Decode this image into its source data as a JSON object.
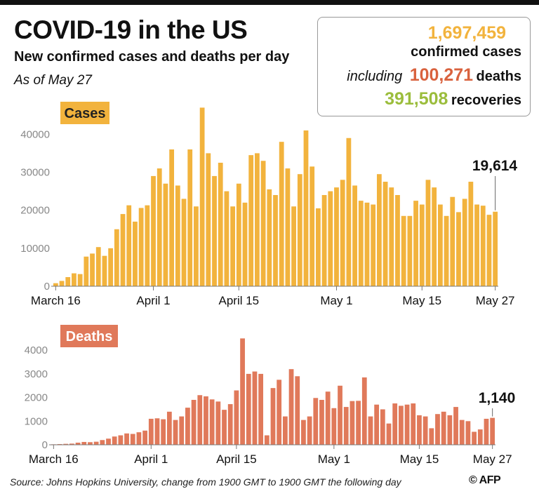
{
  "header": {
    "title": "COVID-19 in the US",
    "subtitle": "New confirmed cases and deaths per day",
    "as_of": "As of May 27"
  },
  "stats": {
    "cases_value": "1,697,459",
    "cases_label": "confirmed cases",
    "including": "including",
    "deaths_value": "100,271",
    "deaths_label": "deaths",
    "recoveries_value": "391,508",
    "recoveries_label": "recoveries"
  },
  "colors": {
    "cases": "#f2b33d",
    "deaths": "#e0795a",
    "recoveries": "#9bbd3c",
    "axis": "#777777"
  },
  "chart_data": [
    {
      "type": "bar",
      "name": "Cases",
      "x": [
        "March 16",
        "March 17",
        "March 18",
        "March 19",
        "March 20",
        "March 21",
        "March 22",
        "March 23",
        "March 24",
        "March 25",
        "March 26",
        "March 27",
        "March 28",
        "March 29",
        "March 30",
        "March 31",
        "April 1",
        "April 2",
        "April 3",
        "April 4",
        "April 5",
        "April 6",
        "April 7",
        "April 8",
        "April 9",
        "April 10",
        "April 11",
        "April 12",
        "April 13",
        "April 14",
        "April 15",
        "April 16",
        "April 17",
        "April 18",
        "April 19",
        "April 20",
        "April 21",
        "April 22",
        "April 23",
        "April 24",
        "April 25",
        "April 26",
        "April 27",
        "April 28",
        "April 29",
        "April 30",
        "May 1",
        "May 2",
        "May 3",
        "May 4",
        "May 5",
        "May 6",
        "May 7",
        "May 8",
        "May 9",
        "May 10",
        "May 11",
        "May 12",
        "May 13",
        "May 14",
        "May 15",
        "May 16",
        "May 17",
        "May 18",
        "May 19",
        "May 20",
        "May 21",
        "May 22",
        "May 23",
        "May 24",
        "May 25",
        "May 26",
        "May 27"
      ],
      "values": [
        800,
        1400,
        2400,
        3400,
        3200,
        7800,
        8600,
        10300,
        8000,
        10000,
        15000,
        19000,
        21300,
        17000,
        20600,
        21300,
        29000,
        31000,
        27000,
        36000,
        26500,
        23000,
        36000,
        21000,
        47000,
        35000,
        29000,
        32500,
        25000,
        21000,
        27000,
        22000,
        34500,
        35000,
        33000,
        25500,
        24000,
        38000,
        31000,
        21000,
        29500,
        41000,
        31500,
        20500,
        24000,
        25000,
        26000,
        28000,
        39000,
        26500,
        22500,
        22000,
        21500,
        29500,
        27500,
        26000,
        24000,
        18500,
        18500,
        22500,
        21500,
        28000,
        26000,
        21500,
        18500,
        23500,
        19500,
        23000,
        27500,
        21500,
        21200,
        18800,
        19614
      ],
      "ylim": [
        0,
        48000
      ],
      "yticks": [
        "0",
        "10000",
        "20000",
        "30000",
        "40000"
      ],
      "xticks": [
        "March 16",
        "April 1",
        "April 15",
        "May 1",
        "May 15",
        "May 27"
      ],
      "annotation": "19,614"
    },
    {
      "type": "bar",
      "name": "Deaths",
      "x": [
        "March 16",
        "March 17",
        "March 18",
        "March 19",
        "March 20",
        "March 21",
        "March 22",
        "March 23",
        "March 24",
        "March 25",
        "March 26",
        "March 27",
        "March 28",
        "March 29",
        "March 30",
        "March 31",
        "April 1",
        "April 2",
        "April 3",
        "April 4",
        "April 5",
        "April 6",
        "April 7",
        "April 8",
        "April 9",
        "April 10",
        "April 11",
        "April 12",
        "April 13",
        "April 14",
        "April 15",
        "April 16",
        "April 17",
        "April 18",
        "April 19",
        "April 20",
        "April 21",
        "April 22",
        "April 23",
        "April 24",
        "April 25",
        "April 26",
        "April 27",
        "April 28",
        "April 29",
        "April 30",
        "May 1",
        "May 2",
        "May 3",
        "May 4",
        "May 5",
        "May 6",
        "May 7",
        "May 8",
        "May 9",
        "May 10",
        "May 11",
        "May 12",
        "May 13",
        "May 14",
        "May 15",
        "May 16",
        "May 17",
        "May 18",
        "May 19",
        "May 20",
        "May 21",
        "May 22",
        "May 23",
        "May 24",
        "May 25",
        "May 26",
        "May 27"
      ],
      "values": [
        20,
        30,
        40,
        50,
        90,
        120,
        110,
        130,
        200,
        260,
        350,
        400,
        480,
        460,
        530,
        600,
        1100,
        1120,
        1080,
        1400,
        1050,
        1200,
        1570,
        1900,
        2100,
        2050,
        1920,
        1830,
        1480,
        1720,
        2300,
        4500,
        3000,
        3100,
        3000,
        400,
        2400,
        2750,
        1200,
        3200,
        2900,
        1050,
        1200,
        1980,
        1900,
        2250,
        1550,
        2500,
        1600,
        1850,
        1860,
        2850,
        1200,
        1700,
        1500,
        900,
        1750,
        1650,
        1700,
        1750,
        1250,
        1200,
        700,
        1300,
        1400,
        1250,
        1600,
        1050,
        1000,
        550,
        650,
        1100,
        1140
      ],
      "ylim": [
        0,
        4600
      ],
      "yticks": [
        "0",
        "1000",
        "2000",
        "3000",
        "4000"
      ],
      "xticks": [
        "March 16",
        "April 1",
        "April 15",
        "May 1",
        "May 15",
        "May 27"
      ],
      "annotation": "1,140"
    }
  ],
  "footer": {
    "source": "Source: Johns Hopkins University, change from 1900 GMT to 1900 GMT the following day",
    "logo_text": "© AFP"
  }
}
